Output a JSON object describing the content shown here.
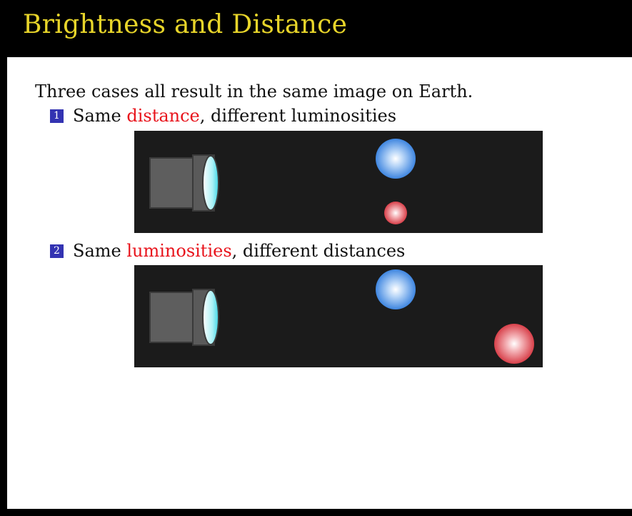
{
  "slide": {
    "title": "Brightness and Distance",
    "intro": "Three cases all result in the same image on Earth.",
    "items": [
      {
        "number": "1",
        "prefix": "Same ",
        "highlight": "distance",
        "suffix": ", different luminosities"
      },
      {
        "number": "2",
        "prefix": "Same ",
        "highlight": "luminosities",
        "suffix": ", different distances"
      }
    ]
  },
  "colors": {
    "title": "#e8d52a",
    "highlight": "#e8141c",
    "bullet": "#3333b2",
    "panel": "#1b1b1b"
  },
  "panels": [
    {
      "name": "same-distance-diagram",
      "stars": [
        {
          "type": "blue-star"
        },
        {
          "type": "red-star",
          "size": "small"
        }
      ]
    },
    {
      "name": "same-luminosity-diagram",
      "stars": [
        {
          "type": "blue-star"
        },
        {
          "type": "red-star",
          "size": "large"
        }
      ]
    }
  ]
}
